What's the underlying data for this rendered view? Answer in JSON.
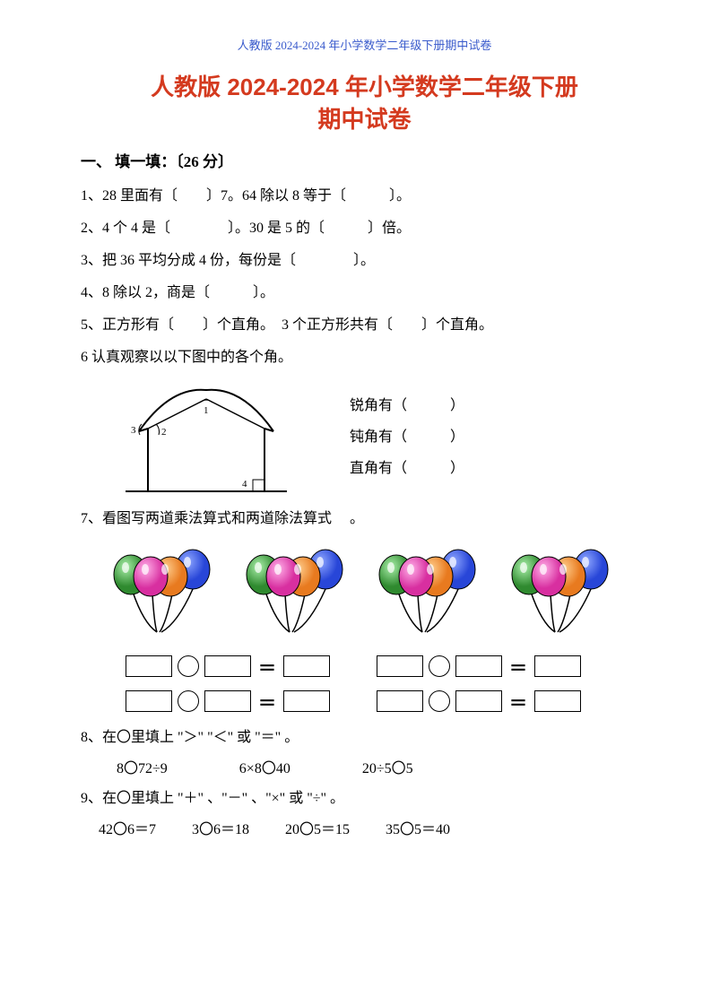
{
  "header": "人教版 2024-2024 年小学数学二年级下册期中试卷",
  "title_line1": "人教版 2024-2024 年小学数学二年级下册",
  "title_line2": "期中试卷",
  "section1": "一、 填一填：〔26 分〕",
  "q1": "1、28 里面有〔　　〕7。64 除以 8 等于〔　　　〕。",
  "q2": "2、4 个 4 是〔　　　　〕。30 是 5 的〔　　　〕倍。",
  "q3": "3、把 36 平均分成 4 份，每份是〔　　　　〕。",
  "q4": "4、8 除以 2，商是〔　　　〕。",
  "q5": "5、正方形有〔　　〕个直角。　3 个正方形共有〔　　〕个直角。",
  "q6": "6 认真观察以以下图中的各个角。",
  "angle_acute": "锐角有（　　　）",
  "angle_obtuse": "钝角有（　　　）",
  "angle_right": "直角有（　　　）",
  "q7": "7、看图写两道乘法算式和两道除法算式 　。",
  "q8": "8、在〇里填上 \"＞\" \"＜\" 或 \"＝\" 。",
  "q8_a": "8〇72÷9",
  "q8_b": "6×8〇40",
  "q8_c": "20÷5〇5",
  "q9": "9、在〇里填上 \"＋\" 、\"－\" 、\"×\" 或 \"÷\" 。",
  "q9_a": "42〇6＝7",
  "q9_b": "3〇6＝18",
  "q9_c": "20〇5＝15",
  "q9_d": "35〇5＝40",
  "balloon_colors": {
    "green": "#2f8a2f",
    "magenta": "#d82fa0",
    "orange": "#e87a1f",
    "blue": "#2846d8"
  },
  "house_colors": {
    "stroke": "#000000",
    "fill": "#ffffff"
  }
}
